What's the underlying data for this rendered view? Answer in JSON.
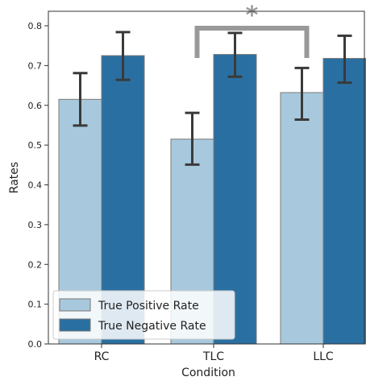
{
  "chart_data": {
    "type": "bar",
    "xlabel": "Condition",
    "ylabel": "Rates",
    "categories": [
      "RC",
      "TLC",
      "LLC"
    ],
    "ylim": [
      0,
      0.82
    ],
    "yticks": [
      0.0,
      0.1,
      0.2,
      0.3,
      0.4,
      0.5,
      0.6,
      0.7,
      0.8
    ],
    "ytick_labels": [
      "0.0",
      "0.1",
      "0.2",
      "0.3",
      "0.4",
      "0.5",
      "0.6",
      "0.7",
      "0.8"
    ],
    "series": [
      {
        "name": "True Positive Rate",
        "color": "#a8c9dd",
        "values": [
          0.615,
          0.515,
          0.632
        ],
        "err_low": [
          0.549,
          0.451,
          0.564
        ],
        "err_high": [
          0.681,
          0.581,
          0.694
        ]
      },
      {
        "name": "True Negative Rate",
        "color": "#2a6fa1",
        "values": [
          0.725,
          0.728,
          0.718
        ],
        "err_low": [
          0.664,
          0.672,
          0.657
        ],
        "err_high": [
          0.784,
          0.782,
          0.775
        ]
      }
    ],
    "legend": {
      "placement": "lower-left"
    },
    "annotation": {
      "text": "*",
      "from_category": "TLC",
      "to_category": "LLC",
      "series": "True Positive Rate",
      "color": "#999999"
    },
    "grid": false
  }
}
